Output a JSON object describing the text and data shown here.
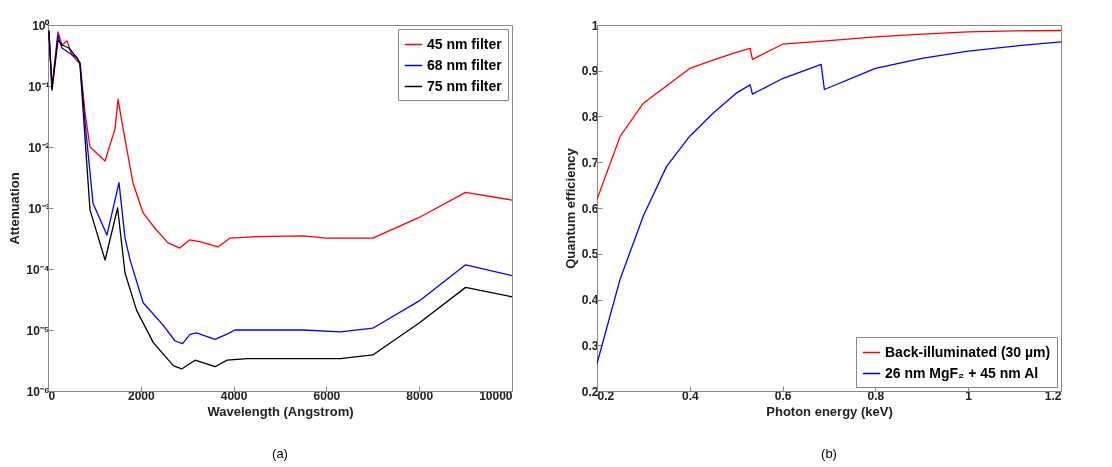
{
  "chart_data": [
    {
      "type": "line",
      "xlabel": "Wavelength (Angstrom)",
      "ylabel": "Attenuation",
      "log": "y",
      "legend": "top right",
      "grid": false,
      "annotations": [
        "(a)"
      ],
      "xlim": [
        0,
        10000
      ],
      "xticks": [
        0,
        2000,
        4000,
        6000,
        8000,
        10000
      ],
      "ylim": [
        1e-06,
        1
      ],
      "yticks": [
        {
          "value": 1e-06,
          "label": "10⁻⁶"
        },
        {
          "value": 1e-05,
          "label": "10⁻⁵"
        },
        {
          "value": 0.0001,
          "label": "10⁻⁴"
        },
        {
          "value": 0.001,
          "label": "10⁻³"
        },
        {
          "value": 0.01,
          "label": "10⁻²"
        },
        {
          "value": 0.1,
          "label": "10⁻¹"
        },
        {
          "value": 1,
          "label": "10⁰"
        }
      ],
      "series": [
        {
          "name": "45 nm filter",
          "color": "#ff0000",
          "x": [
            20,
            86,
            215,
            300,
            410,
            517,
            625,
            690,
            800,
            905,
            1230,
            1445,
            1510,
            1595,
            1830,
            2050,
            2300,
            2580,
            2840,
            3050,
            3270,
            3660,
            3920,
            4500,
            5500,
            6000,
            7000,
            8000,
            9000,
            10000
          ],
          "values": [
            0.79,
            0.1,
            0.77,
            0.47,
            0.55,
            0.32,
            0.26,
            0.24,
            0.036,
            0.01,
            0.0059,
            0.02,
            0.061,
            0.025,
            0.0026,
            0.00083,
            0.00047,
            0.00027,
            0.00022,
            0.0003,
            0.00028,
            0.00023,
            0.00032,
            0.00034,
            0.00035,
            0.00032,
            0.00032,
            0.0007,
            0.0018,
            0.00135
          ]
        },
        {
          "name": "68 nm filter",
          "color": "#0000ff",
          "x": [
            20,
            86,
            215,
            300,
            450,
            625,
            690,
            800,
            970,
            1270,
            1530,
            1660,
            1770,
            2050,
            2480,
            2740,
            2900,
            3060,
            3200,
            3600,
            3880,
            4030,
            5000,
            5500,
            6300,
            7000,
            8000,
            9000,
            10000
          ],
          "values": [
            0.74,
            0.085,
            0.68,
            0.42,
            0.35,
            0.29,
            0.24,
            0.025,
            0.0012,
            0.00036,
            0.0026,
            0.00032,
            0.00014,
            2.8e-05,
            1.2e-05,
            6.6e-06,
            6e-06,
            8.5e-06,
            9e-06,
            7e-06,
            8.7e-06,
            1e-05,
            1e-05,
            1e-05,
            9.3e-06,
            1.07e-05,
            3e-05,
            0.000117,
            7.8e-05
          ]
        },
        {
          "name": "75 nm filter",
          "color": "#000000",
          "x": [
            20,
            86,
            215,
            300,
            450,
            625,
            690,
            905,
            1230,
            1500,
            1660,
            1910,
            2270,
            2700,
            2880,
            3170,
            3600,
            3860,
            4300,
            5500,
            6300,
            7000,
            8000,
            9000,
            10000
          ],
          "values": [
            0.8,
            0.09,
            0.56,
            0.47,
            0.42,
            0.29,
            0.22,
            0.00093,
            0.00014,
            0.001,
            8.6e-05,
            2.1e-05,
            6.2e-06,
            2.6e-06,
            2.3e-06,
            3.2e-06,
            2.5e-06,
            3.2e-06,
            3.4e-06,
            3.4e-06,
            3.4e-06,
            3.9e-06,
            1.3e-05,
            5e-05,
            3.5e-05
          ]
        }
      ]
    },
    {
      "type": "line",
      "xlabel": "Photon energy (keV)",
      "ylabel": "Quantum efficiency",
      "legend": "bottom right",
      "grid": false,
      "annotations": [
        "(b)"
      ],
      "xlim": [
        0.2,
        1.2
      ],
      "xticks": [
        0.2,
        0.4,
        0.6,
        0.8,
        1,
        1.2
      ],
      "ylim": [
        0.2,
        1
      ],
      "yticks": [
        0.2,
        0.3,
        0.4,
        0.5,
        0.6,
        0.7,
        0.8,
        0.9,
        1
      ],
      "series": [
        {
          "name": "Back-illuminated (30 µm)",
          "color": "#ff0000",
          "x": [
            0.2,
            0.22,
            0.25,
            0.3,
            0.35,
            0.4,
            0.45,
            0.5,
            0.53,
            0.535,
            0.6,
            0.7,
            0.8,
            0.9,
            1,
            1.1,
            1.2
          ],
          "values": [
            0.619,
            0.674,
            0.757,
            0.829,
            0.867,
            0.905,
            0.923,
            0.94,
            0.949,
            0.925,
            0.958,
            0.966,
            0.974,
            0.98,
            0.985,
            0.987,
            0.988
          ]
        },
        {
          "name": "26 nm MgF₂ + 45 nm Al",
          "color": "#0000ff",
          "x": [
            0.2,
            0.25,
            0.3,
            0.35,
            0.4,
            0.45,
            0.5,
            0.53,
            0.535,
            0.6,
            0.683,
            0.69,
            0.8,
            0.9,
            1,
            1.1,
            1.2
          ],
          "values": [
            0.26,
            0.445,
            0.583,
            0.691,
            0.757,
            0.807,
            0.851,
            0.869,
            0.849,
            0.883,
            0.914,
            0.859,
            0.905,
            0.927,
            0.943,
            0.954,
            0.963
          ]
        }
      ]
    }
  ]
}
